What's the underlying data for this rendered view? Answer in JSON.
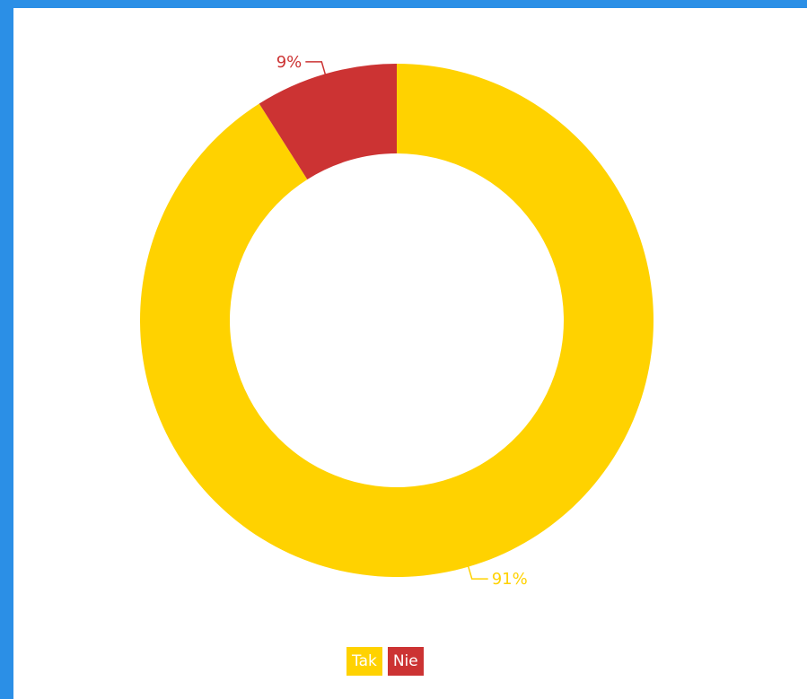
{
  "chart_data": {
    "type": "pie",
    "style": "donut",
    "categories": [
      "Tak",
      "Nie"
    ],
    "values": [
      91,
      9
    ],
    "labels": [
      "91%",
      "9%"
    ],
    "colors": [
      "#ffd200",
      "#cc3333"
    ],
    "legend_position": "bottom-center"
  }
}
